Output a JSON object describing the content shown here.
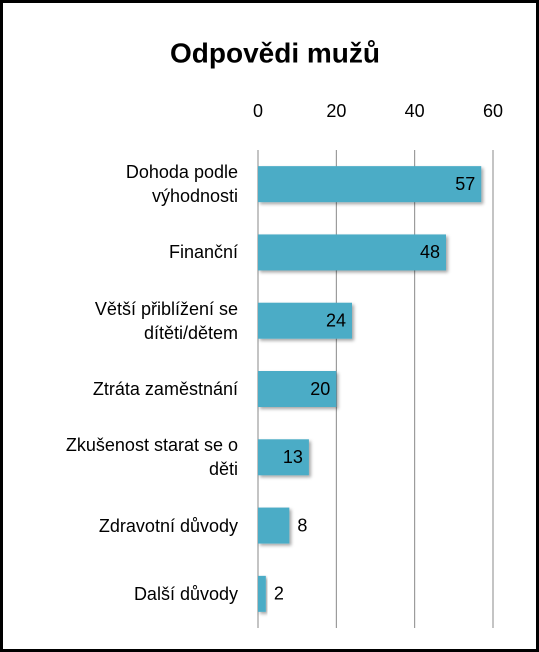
{
  "chart_data": {
    "type": "bar",
    "orientation": "horizontal",
    "title": "Odpovědi mužů",
    "categories": [
      "Dohoda podle výhodnosti",
      "Finanční",
      "Větší přiblížení se dítěti/dětem",
      "Ztráta zaměstnání",
      "Zkušenost starat se o děti",
      "Zdravotní důvody",
      "Další důvody"
    ],
    "values": [
      57,
      48,
      24,
      20,
      13,
      8,
      2
    ],
    "color": "#4bacc6",
    "xlim": [
      0,
      60
    ],
    "xticks": [
      0,
      20,
      40,
      60
    ],
    "grid": true
  }
}
